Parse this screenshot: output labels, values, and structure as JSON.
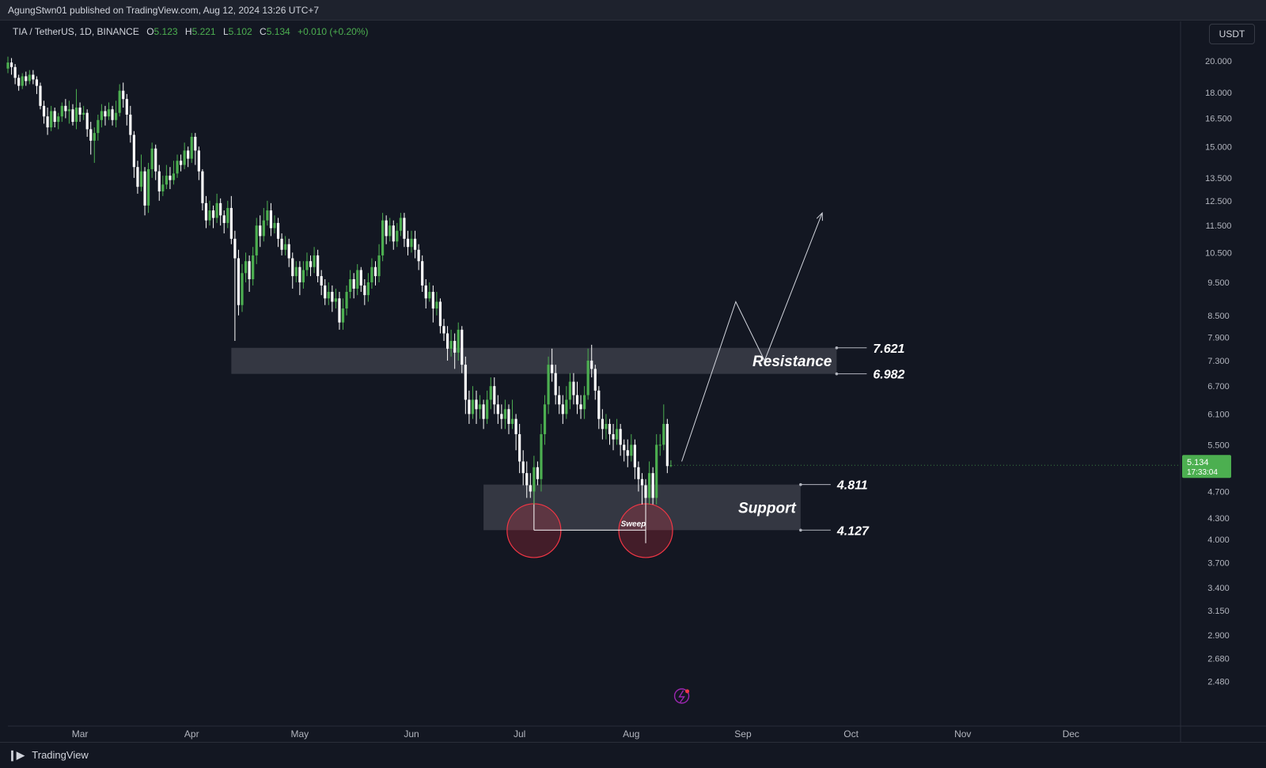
{
  "header": {
    "published_text": "AgungStwn01 published on TradingView.com, Aug 12, 2024 13:26 UTC+7"
  },
  "legend": {
    "symbol": "TIA / TetherUS, 1D, BINANCE",
    "open_label": "O",
    "open": "5.123",
    "high_label": "H",
    "high": "5.221",
    "low_label": "L",
    "low": "5.102",
    "close_label": "C",
    "close": "5.134",
    "change": "+0.010 (+0.20%)"
  },
  "currency_button": "USDT",
  "footer": {
    "brand": "TradingView",
    "logo_icon": "tradingview-logo-icon"
  },
  "chart_data": {
    "type": "candlestick",
    "y_scale": "log",
    "ylim": [
      2.3,
      21.5
    ],
    "y_ticks": [
      "20.000",
      "18.000",
      "16.500",
      "15.000",
      "13.500",
      "12.500",
      "11.500",
      "10.500",
      "9.500",
      "8.500",
      "7.900",
      "7.300",
      "6.700",
      "6.100",
      "5.500",
      "4.700",
      "4.300",
      "4.000",
      "3.700",
      "3.400",
      "3.150",
      "2.900",
      "2.680",
      "2.480"
    ],
    "x_ticks": [
      "Mar",
      "Apr",
      "May",
      "Jun",
      "Jul",
      "Aug",
      "Sep",
      "Oct",
      "Nov",
      "Dec"
    ],
    "x_range": [
      "2024-02-10",
      "2024-12-31"
    ],
    "last_price": {
      "value": "5.134",
      "countdown": "17:33:04",
      "color": "#4caf50"
    },
    "colors": {
      "up": "#4caf50",
      "down": "#ffffff",
      "background": "#131722"
    },
    "zones": [
      {
        "name": "Resistance",
        "top": 7.621,
        "bottom": 6.982,
        "top_label": "7.621",
        "bottom_label": "6.982",
        "start": "2024-04-12",
        "end": "2024-09-27"
      },
      {
        "name": "Support",
        "top": 4.811,
        "bottom": 4.127,
        "top_label": "4.811",
        "bottom_label": "4.127",
        "start": "2024-06-21",
        "end": "2024-09-17"
      }
    ],
    "annotations": {
      "sweep_label": "Sweep",
      "sweep_circles": [
        {
          "date": "2024-07-05",
          "price": 4.12
        },
        {
          "date": "2024-08-05",
          "price": 4.12
        }
      ],
      "sweep_line": {
        "start": "2024-07-05",
        "end": "2024-08-05",
        "price": 4.127
      },
      "projection_path": [
        [
          "2024-08-15",
          5.2
        ],
        [
          "2024-08-30",
          8.9
        ],
        [
          "2024-09-07",
          7.3
        ],
        [
          "2024-09-23",
          12.0
        ]
      ]
    },
    "candles": [
      [
        "2024-02-10",
        19.5,
        19.9,
        19.2,
        20.3
      ],
      [
        "2024-02-11",
        19.9,
        19.6,
        19.1,
        20.2
      ],
      [
        "2024-02-12",
        19.6,
        18.9,
        18.5,
        19.8
      ],
      [
        "2024-02-13",
        18.9,
        18.4,
        18.1,
        19.1
      ],
      [
        "2024-02-14",
        18.4,
        19.0,
        18.2,
        19.2
      ],
      [
        "2024-02-15",
        19.0,
        18.7,
        18.4,
        19.3
      ],
      [
        "2024-02-16",
        18.7,
        19.1,
        18.5,
        19.4
      ],
      [
        "2024-02-17",
        19.1,
        18.8,
        18.5,
        19.4
      ],
      [
        "2024-02-18",
        18.8,
        18.4,
        17.9,
        19.0
      ],
      [
        "2024-02-19",
        18.4,
        17.2,
        17.0,
        18.6
      ],
      [
        "2024-02-20",
        17.2,
        16.6,
        16.2,
        17.5
      ],
      [
        "2024-02-21",
        16.6,
        16.0,
        15.6,
        17.1
      ],
      [
        "2024-02-22",
        16.0,
        16.9,
        15.8,
        17.2
      ],
      [
        "2024-02-23",
        16.9,
        16.3,
        16.0,
        17.1
      ],
      [
        "2024-02-24",
        16.3,
        16.6,
        15.9,
        16.8
      ],
      [
        "2024-02-25",
        16.6,
        17.2,
        16.3,
        17.4
      ],
      [
        "2024-02-26",
        17.2,
        16.9,
        16.5,
        17.6
      ],
      [
        "2024-02-27",
        16.9,
        17.0,
        16.2,
        17.5
      ],
      [
        "2024-02-28",
        17.0,
        16.3,
        16.1,
        17.3
      ],
      [
        "2024-02-29",
        16.3,
        17.1,
        15.9,
        18.2
      ],
      [
        "2024-03-01",
        17.1,
        16.7,
        16.3,
        17.4
      ],
      [
        "2024-03-02",
        16.7,
        16.8,
        16.4,
        17.2
      ],
      [
        "2024-03-03",
        16.8,
        15.9,
        15.5,
        17.0
      ],
      [
        "2024-03-04",
        15.9,
        15.3,
        14.6,
        16.3
      ],
      [
        "2024-03-05",
        15.3,
        15.7,
        14.2,
        16.0
      ],
      [
        "2024-03-06",
        15.7,
        16.4,
        15.3,
        16.7
      ],
      [
        "2024-03-07",
        16.4,
        16.9,
        16.0,
        17.3
      ],
      [
        "2024-03-08",
        16.9,
        16.6,
        16.1,
        17.2
      ],
      [
        "2024-03-09",
        16.6,
        17.0,
        16.4,
        17.4
      ],
      [
        "2024-03-10",
        17.0,
        16.4,
        16.1,
        17.2
      ],
      [
        "2024-03-11",
        16.4,
        16.8,
        16.0,
        17.5
      ],
      [
        "2024-03-12",
        16.8,
        18.1,
        16.6,
        18.5
      ],
      [
        "2024-03-13",
        18.1,
        17.6,
        17.1,
        18.6
      ],
      [
        "2024-03-14",
        17.6,
        16.7,
        16.1,
        17.9
      ],
      [
        "2024-03-15",
        16.7,
        15.6,
        15.2,
        17.2
      ],
      [
        "2024-03-16",
        15.6,
        14.0,
        13.5,
        15.8
      ],
      [
        "2024-03-17",
        14.0,
        13.1,
        12.8,
        14.3
      ],
      [
        "2024-03-18",
        13.1,
        13.8,
        12.9,
        14.6
      ],
      [
        "2024-03-19",
        13.8,
        12.3,
        11.9,
        14.0
      ],
      [
        "2024-03-20",
        12.3,
        13.9,
        12.0,
        14.2
      ],
      [
        "2024-03-21",
        13.9,
        14.9,
        13.5,
        15.2
      ],
      [
        "2024-03-22",
        14.9,
        13.8,
        13.4,
        15.1
      ],
      [
        "2024-03-23",
        13.8,
        12.9,
        12.5,
        14.1
      ],
      [
        "2024-03-24",
        12.9,
        13.2,
        12.7,
        13.6
      ],
      [
        "2024-03-25",
        13.2,
        13.6,
        13.0,
        14.1
      ],
      [
        "2024-03-26",
        13.6,
        13.4,
        13.0,
        14.0
      ],
      [
        "2024-03-27",
        13.4,
        13.7,
        13.2,
        14.3
      ],
      [
        "2024-03-28",
        13.7,
        14.3,
        13.5,
        14.6
      ],
      [
        "2024-03-29",
        14.3,
        14.1,
        13.8,
        14.6
      ],
      [
        "2024-03-30",
        14.1,
        14.8,
        13.9,
        15.2
      ],
      [
        "2024-03-31",
        14.8,
        14.4,
        14.0,
        15.0
      ],
      [
        "2024-04-01",
        14.4,
        15.5,
        14.2,
        15.7
      ],
      [
        "2024-04-02",
        15.5,
        14.8,
        14.1,
        15.7
      ],
      [
        "2024-04-03",
        14.8,
        13.8,
        13.4,
        15.0
      ],
      [
        "2024-04-04",
        13.8,
        12.4,
        12.1,
        13.9
      ],
      [
        "2024-04-05",
        12.4,
        11.7,
        11.4,
        12.7
      ],
      [
        "2024-04-06",
        11.7,
        12.1,
        11.5,
        12.5
      ],
      [
        "2024-04-07",
        12.1,
        11.8,
        11.4,
        12.3
      ],
      [
        "2024-04-08",
        11.8,
        12.4,
        11.6,
        12.8
      ],
      [
        "2024-04-09",
        12.4,
        11.9,
        11.5,
        12.6
      ],
      [
        "2024-04-10",
        11.9,
        11.6,
        11.2,
        12.1
      ],
      [
        "2024-04-11",
        11.6,
        12.2,
        11.4,
        12.5
      ],
      [
        "2024-04-12",
        12.2,
        11.0,
        10.8,
        12.7
      ],
      [
        "2024-04-13",
        11.0,
        10.3,
        7.8,
        11.3
      ],
      [
        "2024-04-14",
        10.3,
        8.8,
        8.5,
        10.6
      ],
      [
        "2024-04-15",
        8.8,
        9.8,
        8.6,
        10.1
      ],
      [
        "2024-04-16",
        9.8,
        10.2,
        9.5,
        10.5
      ],
      [
        "2024-04-17",
        10.2,
        9.6,
        9.2,
        10.4
      ],
      [
        "2024-04-18",
        9.6,
        10.4,
        9.4,
        10.7
      ],
      [
        "2024-04-19",
        10.4,
        11.5,
        10.1,
        11.8
      ],
      [
        "2024-04-20",
        11.5,
        11.1,
        10.7,
        11.9
      ],
      [
        "2024-04-21",
        11.1,
        11.7,
        10.9,
        12.2
      ],
      [
        "2024-04-22",
        11.7,
        12.1,
        11.5,
        12.5
      ],
      [
        "2024-04-23",
        12.1,
        11.4,
        11.1,
        12.4
      ],
      [
        "2024-04-24",
        11.4,
        11.6,
        11.2,
        11.9
      ],
      [
        "2024-04-25",
        11.6,
        11.0,
        10.7,
        11.8
      ],
      [
        "2024-04-26",
        11.0,
        10.6,
        10.4,
        11.2
      ],
      [
        "2024-04-27",
        10.6,
        10.8,
        10.4,
        11.1
      ],
      [
        "2024-04-28",
        10.8,
        10.3,
        10.0,
        11.0
      ],
      [
        "2024-04-29",
        10.3,
        9.7,
        9.3,
        10.5
      ],
      [
        "2024-04-30",
        9.7,
        10.0,
        9.5,
        10.2
      ],
      [
        "2024-05-01",
        10.0,
        9.5,
        9.1,
        10.2
      ],
      [
        "2024-05-02",
        9.5,
        9.9,
        9.3,
        10.2
      ],
      [
        "2024-05-03",
        9.9,
        10.2,
        9.7,
        10.5
      ],
      [
        "2024-05-04",
        10.2,
        10.0,
        9.7,
        10.4
      ],
      [
        "2024-05-05",
        10.0,
        10.4,
        9.8,
        10.7
      ],
      [
        "2024-05-06",
        10.4,
        9.7,
        9.5,
        10.6
      ],
      [
        "2024-05-07",
        9.7,
        9.4,
        9.1,
        9.9
      ],
      [
        "2024-05-08",
        9.4,
        9.0,
        8.8,
        9.6
      ],
      [
        "2024-05-09",
        9.0,
        9.2,
        8.8,
        9.5
      ],
      [
        "2024-05-10",
        9.2,
        8.9,
        8.6,
        9.4
      ],
      [
        "2024-05-11",
        8.9,
        9.0,
        8.7,
        9.3
      ],
      [
        "2024-05-12",
        9.0,
        8.3,
        8.1,
        9.2
      ],
      [
        "2024-05-13",
        8.3,
        8.7,
        8.1,
        9.0
      ],
      [
        "2024-05-14",
        8.7,
        9.2,
        8.5,
        9.4
      ],
      [
        "2024-05-15",
        9.2,
        9.6,
        9.0,
        9.9
      ],
      [
        "2024-05-16",
        9.6,
        9.3,
        9.0,
        9.8
      ],
      [
        "2024-05-17",
        9.3,
        9.9,
        9.1,
        10.1
      ],
      [
        "2024-05-18",
        9.9,
        9.4,
        9.2,
        10.0
      ],
      [
        "2024-05-19",
        9.4,
        9.1,
        8.8,
        9.6
      ],
      [
        "2024-05-20",
        9.1,
        9.5,
        8.9,
        9.8
      ],
      [
        "2024-05-21",
        9.5,
        10.0,
        9.3,
        10.3
      ],
      [
        "2024-05-22",
        10.0,
        9.7,
        9.4,
        10.2
      ],
      [
        "2024-05-23",
        9.7,
        10.4,
        9.5,
        10.8
      ],
      [
        "2024-05-24",
        10.4,
        11.7,
        10.2,
        12.0
      ],
      [
        "2024-05-25",
        11.7,
        11.1,
        10.8,
        11.9
      ],
      [
        "2024-05-26",
        11.1,
        11.5,
        10.9,
        11.8
      ],
      [
        "2024-05-27",
        11.5,
        10.9,
        10.6,
        11.7
      ],
      [
        "2024-05-28",
        10.9,
        11.3,
        10.7,
        11.6
      ],
      [
        "2024-05-29",
        11.3,
        11.8,
        11.1,
        12.0
      ],
      [
        "2024-05-30",
        11.8,
        11.0,
        10.7,
        12.0
      ],
      [
        "2024-05-31",
        11.0,
        10.7,
        10.4,
        11.3
      ],
      [
        "2024-06-01",
        10.7,
        11.0,
        10.5,
        11.3
      ],
      [
        "2024-06-02",
        11.0,
        10.6,
        10.3,
        11.3
      ],
      [
        "2024-06-03",
        10.6,
        10.2,
        9.9,
        10.8
      ],
      [
        "2024-06-04",
        10.2,
        9.4,
        9.2,
        10.4
      ],
      [
        "2024-06-05",
        9.4,
        9.0,
        8.7,
        9.6
      ],
      [
        "2024-06-06",
        9.0,
        9.2,
        8.9,
        9.5
      ],
      [
        "2024-06-07",
        9.2,
        8.7,
        8.3,
        9.4
      ],
      [
        "2024-06-08",
        8.7,
        8.9,
        8.5,
        9.2
      ],
      [
        "2024-06-09",
        8.9,
        8.2,
        8.0,
        9.0
      ],
      [
        "2024-06-10",
        8.2,
        8.0,
        7.8,
        8.4
      ],
      [
        "2024-06-11",
        8.0,
        7.6,
        7.3,
        8.2
      ],
      [
        "2024-06-12",
        7.6,
        7.8,
        7.4,
        8.1
      ],
      [
        "2024-06-13",
        7.8,
        7.5,
        7.1,
        8.0
      ],
      [
        "2024-06-14",
        7.5,
        8.1,
        7.3,
        8.3
      ],
      [
        "2024-06-15",
        8.1,
        7.2,
        7.0,
        8.2
      ],
      [
        "2024-06-16",
        7.2,
        6.4,
        6.1,
        7.4
      ],
      [
        "2024-06-17",
        6.4,
        6.1,
        5.9,
        6.6
      ],
      [
        "2024-06-18",
        6.1,
        6.4,
        6.0,
        6.7
      ],
      [
        "2024-06-19",
        6.4,
        6.2,
        5.9,
        6.6
      ],
      [
        "2024-06-20",
        6.2,
        6.3,
        6.0,
        6.5
      ],
      [
        "2024-06-21",
        6.3,
        6.0,
        5.8,
        6.4
      ],
      [
        "2024-06-22",
        6.0,
        6.4,
        5.9,
        6.6
      ],
      [
        "2024-06-23",
        6.4,
        6.7,
        6.2,
        6.9
      ],
      [
        "2024-06-24",
        6.7,
        6.3,
        6.1,
        6.9
      ],
      [
        "2024-06-25",
        6.3,
        6.1,
        5.9,
        6.5
      ],
      [
        "2024-06-26",
        6.1,
        6.0,
        5.8,
        6.3
      ],
      [
        "2024-06-27",
        6.0,
        6.2,
        5.8,
        6.4
      ],
      [
        "2024-06-28",
        6.2,
        5.9,
        5.7,
        6.3
      ],
      [
        "2024-06-29",
        5.9,
        6.0,
        5.8,
        6.4
      ],
      [
        "2024-06-30",
        6.0,
        5.7,
        5.4,
        6.1
      ],
      [
        "2024-07-01",
        5.7,
        5.2,
        5.0,
        5.9
      ],
      [
        "2024-07-02",
        5.2,
        5.0,
        4.8,
        5.4
      ],
      [
        "2024-07-03",
        5.0,
        4.8,
        4.6,
        5.2
      ],
      [
        "2024-07-04",
        4.8,
        4.7,
        4.6,
        5.0
      ],
      [
        "2024-07-05",
        4.7,
        5.1,
        4.5,
        5.3
      ],
      [
        "2024-07-06",
        5.1,
        4.9,
        4.8,
        5.2
      ],
      [
        "2024-07-07",
        4.9,
        5.7,
        4.7,
        5.9
      ],
      [
        "2024-07-08",
        5.7,
        6.3,
        5.5,
        6.5
      ],
      [
        "2024-07-09",
        6.3,
        7.2,
        6.1,
        7.4
      ],
      [
        "2024-07-10",
        7.2,
        7.0,
        6.8,
        7.6
      ],
      [
        "2024-07-11",
        7.0,
        6.5,
        6.3,
        7.2
      ],
      [
        "2024-07-12",
        6.5,
        6.3,
        6.1,
        6.7
      ],
      [
        "2024-07-13",
        6.3,
        6.1,
        5.9,
        6.5
      ],
      [
        "2024-07-14",
        6.1,
        6.4,
        6.0,
        6.7
      ],
      [
        "2024-07-15",
        6.4,
        6.8,
        6.2,
        7.0
      ],
      [
        "2024-07-16",
        6.8,
        6.5,
        6.3,
        7.0
      ],
      [
        "2024-07-17",
        6.5,
        6.3,
        6.1,
        6.8
      ],
      [
        "2024-07-18",
        6.3,
        6.2,
        6.0,
        6.5
      ],
      [
        "2024-07-19",
        6.2,
        6.5,
        6.0,
        6.7
      ],
      [
        "2024-07-20",
        6.5,
        7.3,
        6.4,
        7.6
      ],
      [
        "2024-07-21",
        7.3,
        7.1,
        6.9,
        7.7
      ],
      [
        "2024-07-22",
        7.1,
        6.6,
        6.4,
        7.2
      ],
      [
        "2024-07-23",
        6.6,
        6.0,
        5.8,
        6.7
      ],
      [
        "2024-07-24",
        6.0,
        5.8,
        5.6,
        6.2
      ],
      [
        "2024-07-25",
        5.8,
        5.9,
        5.6,
        6.1
      ],
      [
        "2024-07-26",
        5.9,
        5.7,
        5.5,
        6.0
      ],
      [
        "2024-07-27",
        5.7,
        5.6,
        5.4,
        5.9
      ],
      [
        "2024-07-28",
        5.6,
        5.8,
        5.5,
        6.0
      ],
      [
        "2024-07-29",
        5.8,
        5.5,
        5.3,
        5.9
      ],
      [
        "2024-07-30",
        5.5,
        5.4,
        5.2,
        5.6
      ],
      [
        "2024-07-31",
        5.4,
        5.3,
        5.1,
        5.6
      ],
      [
        "2024-08-01",
        5.3,
        5.5,
        5.2,
        5.7
      ],
      [
        "2024-08-02",
        5.5,
        5.1,
        4.9,
        5.6
      ],
      [
        "2024-08-03",
        5.1,
        4.9,
        4.7,
        5.2
      ],
      [
        "2024-08-04",
        4.9,
        4.8,
        4.5,
        5.0
      ],
      [
        "2024-08-05",
        4.8,
        4.6,
        3.95,
        4.9
      ],
      [
        "2024-08-06",
        4.6,
        5.0,
        4.5,
        5.2
      ],
      [
        "2024-08-07",
        5.0,
        4.6,
        4.5,
        5.1
      ],
      [
        "2024-08-08",
        4.6,
        5.5,
        4.5,
        5.7
      ],
      [
        "2024-08-09",
        5.5,
        5.5,
        5.3,
        5.7
      ],
      [
        "2024-08-10",
        5.5,
        5.9,
        5.4,
        6.3
      ],
      [
        "2024-08-11",
        5.9,
        5.12,
        5.0,
        6.0
      ],
      [
        "2024-08-12",
        5.123,
        5.134,
        5.102,
        5.221
      ]
    ]
  }
}
